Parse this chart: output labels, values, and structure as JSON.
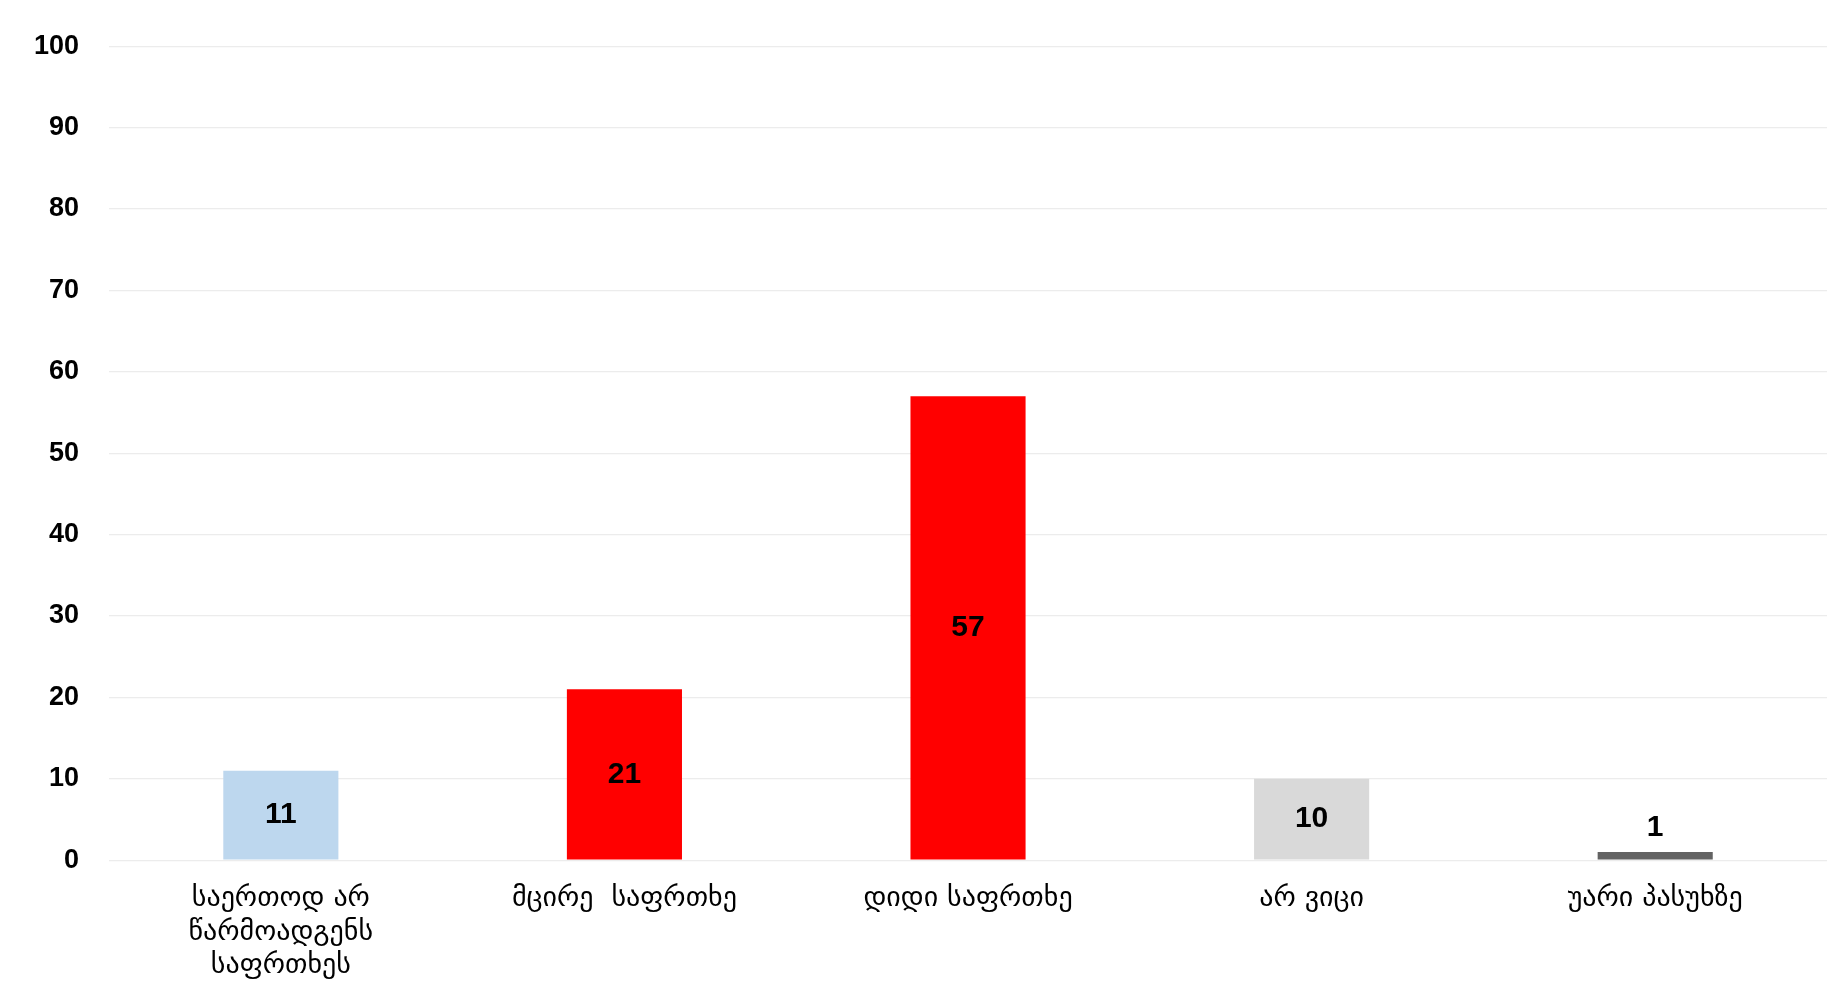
{
  "chart_data": {
    "type": "bar",
    "categories": [
      "საერთოდ არ წარმოადგენს საფრთხეს",
      "მცირე  საფრთხე",
      "დიდი საფრთხე",
      "არ ვიცი",
      "უარი პასუხზე"
    ],
    "values": [
      11,
      21,
      57,
      10,
      1
    ],
    "colors": [
      "#bdd7ee",
      "#ff0000",
      "#ff0000",
      "#d9d9d9",
      "#636363"
    ],
    "ylim": [
      0,
      100
    ],
    "yticks": [
      0,
      10,
      20,
      30,
      40,
      50,
      60,
      70,
      80,
      90,
      100
    ],
    "grid": "y",
    "legend": false,
    "data_labels": true
  }
}
